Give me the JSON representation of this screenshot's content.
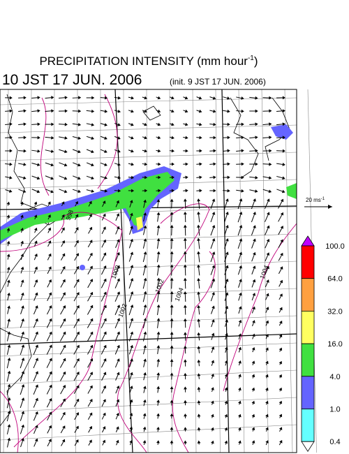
{
  "header": {
    "title": {
      "main": "PRECIPITATION INTENSITY (mm hour",
      "exponent": "-1",
      "close": ")"
    },
    "valid_time": "10 JST 17 JUN. 2006",
    "init_time": "(init. 9 JST 17 JUN. 2006)"
  },
  "wind_scale": {
    "label": "20 ms",
    "exponent": "-1"
  },
  "isobar_labels": [
    "998",
    "1000",
    "1002",
    "1002",
    "1004",
    "1004"
  ],
  "colorbar": {
    "levels": [
      "100.0",
      "64.0",
      "32.0",
      "16.0",
      "4.0",
      "1.0",
      "0.4"
    ],
    "colors": [
      "#c000ff",
      "#ff0000",
      "#ffa040",
      "#ffff60",
      "#40e040",
      "#6464ff",
      "#64ffff",
      "#ffffff"
    ]
  }
}
